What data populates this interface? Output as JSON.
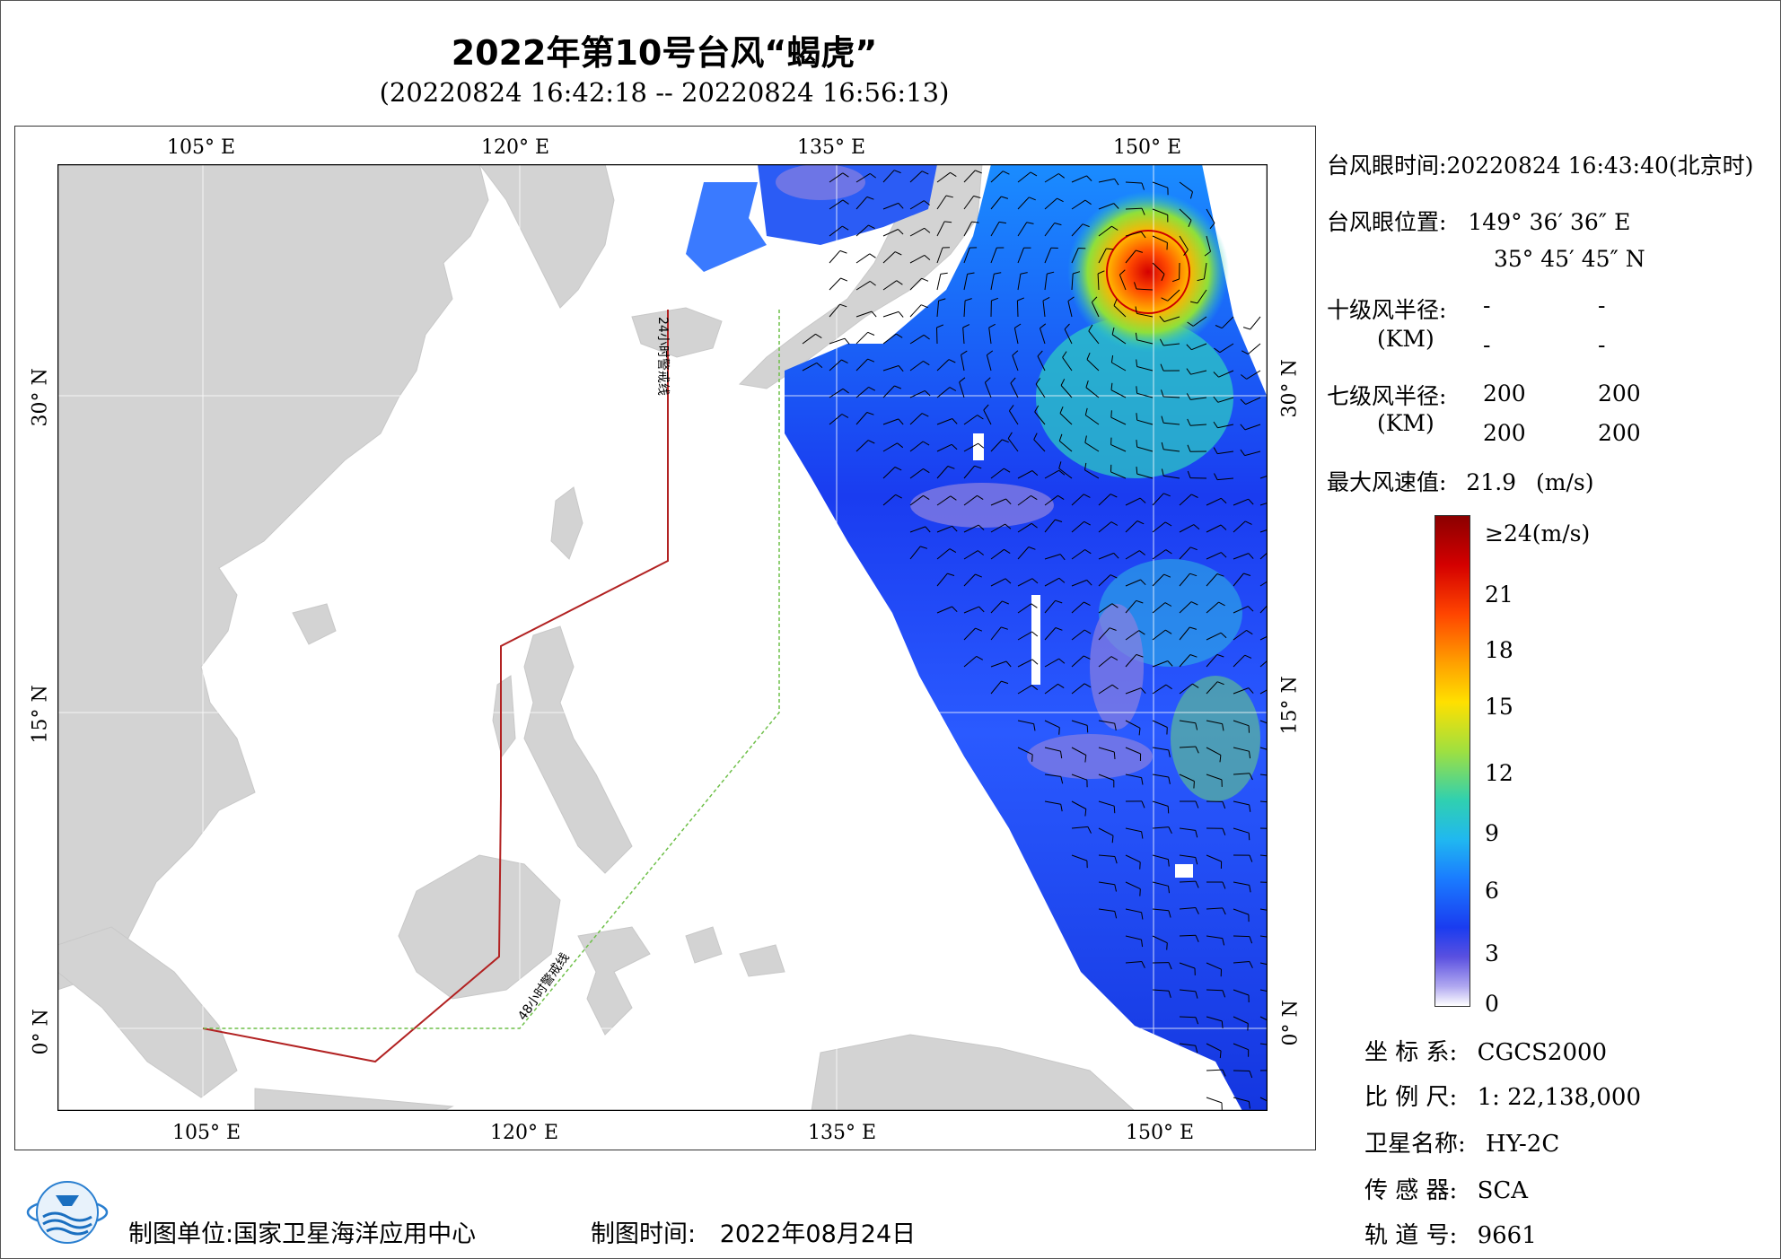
{
  "title": "2022年第10号台风“蝎虎”",
  "subtitle": "(20220824 16:42:18 -- 20220824 16:56:13)",
  "map": {
    "lon_ticks_top": [
      "105° E",
      "120° E",
      "135° E",
      "150° E"
    ],
    "lon_ticks_bottom": [
      "105° E",
      "120° E",
      "135° E",
      "150° E"
    ],
    "lat_ticks_left": [
      "30° N",
      "15° N",
      "0° N"
    ],
    "lat_ticks_right": [
      "30° N",
      "15° N",
      "0° N"
    ],
    "line_24h_label": "24小时警戒线",
    "line_48h_label": "48小时警戒线",
    "colors": {
      "land": "#d3d3d3",
      "sea": "#ffffff",
      "warning_24h": "#b22222",
      "warning_48h": "#6fc04a",
      "eye_circle": "#cc0000"
    }
  },
  "info": {
    "eye_time_label": "台风眼时间:",
    "eye_time_value": "20220824 16:43:40(北京时)",
    "eye_pos_label": "台风眼位置:",
    "eye_lon": "149° 36′ 36″ E",
    "eye_lat": "35° 45′ 45″ N",
    "r10_label": "十级风半径:",
    "r10_values": [
      "-",
      "-",
      "-",
      "-"
    ],
    "km_label": "(KM)",
    "r7_label": "七级风半径:",
    "r7_values": [
      "200",
      "200",
      "200",
      "200"
    ],
    "max_wind_label": "最大风速值:",
    "max_wind_value": "21.9",
    "max_wind_unit": "(m/s)"
  },
  "colorbar": {
    "labels": [
      "≥24(m/s)",
      "21",
      "18",
      "15",
      "12",
      "9",
      "6",
      "3",
      "0"
    ],
    "values": [
      24,
      21,
      18,
      15,
      12,
      9,
      6,
      3,
      0
    ],
    "unit": "(m/s)"
  },
  "metadata": {
    "crs_label": "坐 标 系:",
    "crs_value": "CGCS2000",
    "scale_label": "比 例 尺:",
    "scale_value": "1: 22,138,000",
    "satellite_label": "卫星名称:",
    "satellite_value": "HY-2C",
    "sensor_label": "传 感 器:",
    "sensor_value": "SCA",
    "orbit_label": "轨 道 号:",
    "orbit_value": "9661"
  },
  "footer": {
    "org_label": "制图单位:",
    "org_value": "国家卫星海洋应用中心",
    "date_label": "制图时间:",
    "date_value": "2022年08月24日"
  }
}
